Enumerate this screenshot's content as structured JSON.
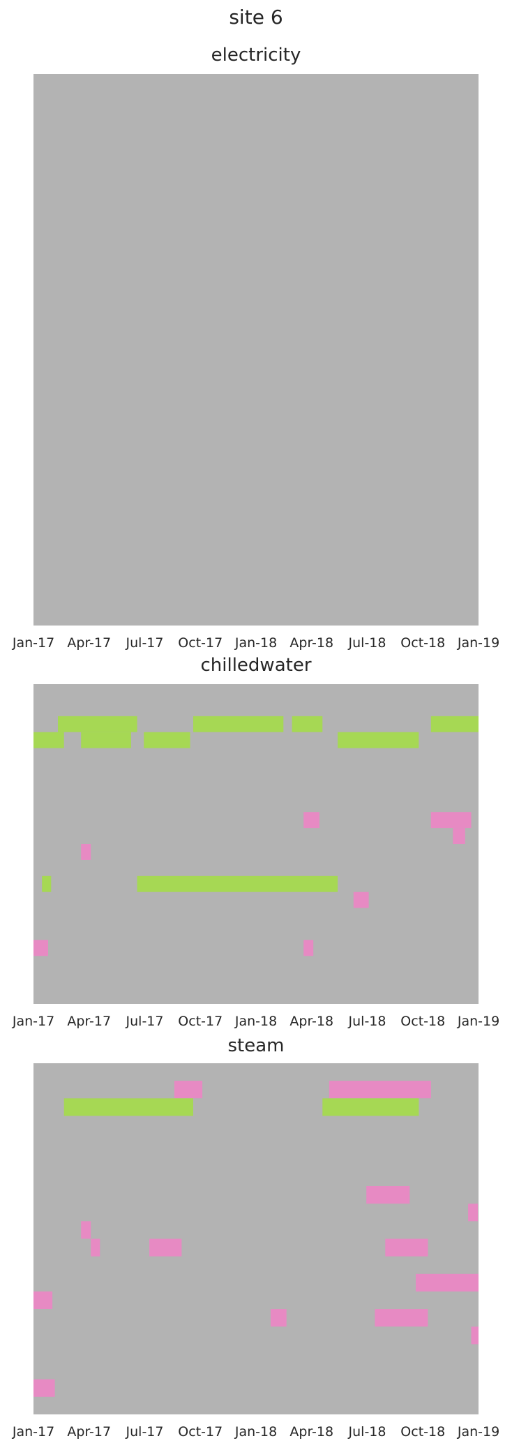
{
  "title": "site 6",
  "colors": {
    "background": "#b3b3b3",
    "green": "#a6d854",
    "pink": "#e78ac3",
    "teal": "#66c2a5",
    "orange": "#fc8d62"
  },
  "x_ticks": [
    "Jan-17",
    "Apr-17",
    "Jul-17",
    "Oct-17",
    "Jan-18",
    "Apr-18",
    "Jul-18",
    "Oct-18",
    "Jan-19"
  ],
  "chart_data": [
    {
      "type": "heatmap",
      "title": "electricity",
      "x_range": [
        "2017-01-01",
        "2019-01-01"
      ],
      "rows": 40,
      "segments": []
    },
    {
      "type": "heatmap",
      "title": "chilledwater",
      "x_range": [
        "2017-01-01",
        "2019-01-01"
      ],
      "rows": 20,
      "segments": [
        {
          "row": 2,
          "start": "2017-02-10",
          "end": "2017-06-20",
          "color": "green"
        },
        {
          "row": 2,
          "start": "2017-09-20",
          "end": "2018-02-15",
          "color": "green"
        },
        {
          "row": 2,
          "start": "2018-03-01",
          "end": "2018-04-20",
          "color": "green"
        },
        {
          "row": 2,
          "start": "2018-10-15",
          "end": "2019-01-01",
          "color": "green"
        },
        {
          "row": 3,
          "start": "2017-01-01",
          "end": "2017-02-20",
          "color": "green"
        },
        {
          "row": 3,
          "start": "2017-03-20",
          "end": "2017-06-10",
          "color": "green"
        },
        {
          "row": 3,
          "start": "2017-07-01",
          "end": "2017-09-15",
          "color": "green"
        },
        {
          "row": 3,
          "start": "2018-05-15",
          "end": "2018-09-25",
          "color": "green"
        },
        {
          "row": 8,
          "start": "2018-03-20",
          "end": "2018-04-15",
          "color": "pink"
        },
        {
          "row": 8,
          "start": "2018-10-15",
          "end": "2018-12-20",
          "color": "pink"
        },
        {
          "row": 9,
          "start": "2018-11-20",
          "end": "2018-12-10",
          "color": "pink"
        },
        {
          "row": 10,
          "start": "2017-03-20",
          "end": "2017-04-05",
          "color": "pink"
        },
        {
          "row": 12,
          "start": "2017-06-20",
          "end": "2018-05-15",
          "color": "green"
        },
        {
          "row": 12,
          "start": "2017-01-15",
          "end": "2017-01-30",
          "color": "green"
        },
        {
          "row": 13,
          "start": "2018-06-10",
          "end": "2018-07-05",
          "color": "pink"
        },
        {
          "row": 16,
          "start": "2017-01-01",
          "end": "2017-01-25",
          "color": "pink"
        },
        {
          "row": 16,
          "start": "2018-03-20",
          "end": "2018-04-05",
          "color": "pink"
        }
      ]
    },
    {
      "type": "heatmap",
      "title": "steam",
      "x_range": [
        "2017-01-01",
        "2019-01-01"
      ],
      "rows": 20,
      "segments": [
        {
          "row": 1,
          "start": "2018-05-01",
          "end": "2018-10-15",
          "color": "pink"
        },
        {
          "row": 1,
          "start": "2017-08-20",
          "end": "2017-10-05",
          "color": "pink"
        },
        {
          "row": 2,
          "start": "2017-02-20",
          "end": "2017-09-20",
          "color": "green"
        },
        {
          "row": 2,
          "start": "2018-04-20",
          "end": "2018-09-25",
          "color": "green"
        },
        {
          "row": 7,
          "start": "2018-07-01",
          "end": "2018-09-10",
          "color": "pink"
        },
        {
          "row": 8,
          "start": "2018-12-15",
          "end": "2018-12-31",
          "color": "pink"
        },
        {
          "row": 9,
          "start": "2017-03-20",
          "end": "2017-04-05",
          "color": "pink"
        },
        {
          "row": 10,
          "start": "2017-07-10",
          "end": "2017-09-01",
          "color": "pink"
        },
        {
          "row": 10,
          "start": "2018-08-01",
          "end": "2018-10-10",
          "color": "pink"
        },
        {
          "row": 10,
          "start": "2017-04-05",
          "end": "2017-04-20",
          "color": "pink"
        },
        {
          "row": 12,
          "start": "2018-09-20",
          "end": "2019-01-01",
          "color": "pink"
        },
        {
          "row": 13,
          "start": "2017-01-01",
          "end": "2017-02-01",
          "color": "pink"
        },
        {
          "row": 14,
          "start": "2018-01-25",
          "end": "2018-02-20",
          "color": "pink"
        },
        {
          "row": 14,
          "start": "2018-07-15",
          "end": "2018-10-10",
          "color": "pink"
        },
        {
          "row": 15,
          "start": "2018-12-20",
          "end": "2019-01-01",
          "color": "pink"
        },
        {
          "row": 18,
          "start": "2017-01-01",
          "end": "2017-02-05",
          "color": "pink"
        }
      ]
    }
  ]
}
